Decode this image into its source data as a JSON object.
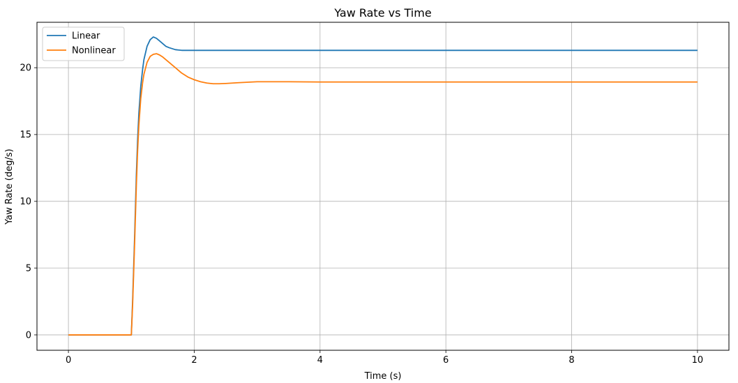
{
  "chart_data": {
    "type": "line",
    "title": "Yaw Rate vs Time",
    "xlabel": "Time (s)",
    "ylabel": "Yaw Rate (deg/s)",
    "xlim": [
      -0.5,
      10.5
    ],
    "ylim": [
      -1.15,
      23.4
    ],
    "xticks": [
      0,
      2,
      4,
      6,
      8,
      10
    ],
    "yticks": [
      0,
      5,
      10,
      15,
      20
    ],
    "grid": true,
    "legend_position": "upper-left",
    "series": [
      {
        "name": "Linear",
        "color": "#1f77b4",
        "x": [
          0,
          1.0,
          1.02,
          1.05,
          1.08,
          1.1,
          1.12,
          1.15,
          1.18,
          1.2,
          1.25,
          1.3,
          1.35,
          1.4,
          1.45,
          1.5,
          1.55,
          1.6,
          1.7,
          1.8,
          1.9,
          2.0,
          2.5,
          3.0,
          4.0,
          6.0,
          8.0,
          10.0
        ],
        "y": [
          0,
          0,
          2.5,
          7.0,
          12.0,
          14.6,
          16.6,
          18.6,
          19.9,
          20.6,
          21.6,
          22.1,
          22.3,
          22.2,
          22.0,
          21.8,
          21.6,
          21.5,
          21.35,
          21.3,
          21.3,
          21.3,
          21.3,
          21.3,
          21.3,
          21.3,
          21.3,
          21.3
        ]
      },
      {
        "name": "Nonlinear",
        "color": "#ff7f0e",
        "x": [
          0,
          1.0,
          1.02,
          1.05,
          1.08,
          1.1,
          1.12,
          1.15,
          1.18,
          1.2,
          1.25,
          1.3,
          1.35,
          1.4,
          1.45,
          1.5,
          1.6,
          1.7,
          1.8,
          1.9,
          2.0,
          2.1,
          2.2,
          2.3,
          2.4,
          2.5,
          2.7,
          3.0,
          3.5,
          4.0,
          5.0,
          6.0,
          8.0,
          10.0
        ],
        "y": [
          0,
          0,
          2.2,
          6.5,
          11.2,
          13.8,
          15.7,
          17.7,
          18.9,
          19.5,
          20.4,
          20.85,
          21.0,
          21.05,
          20.95,
          20.8,
          20.4,
          20.0,
          19.6,
          19.3,
          19.1,
          18.95,
          18.85,
          18.8,
          18.8,
          18.82,
          18.88,
          18.95,
          18.95,
          18.93,
          18.93,
          18.93,
          18.93,
          18.93
        ]
      }
    ]
  }
}
